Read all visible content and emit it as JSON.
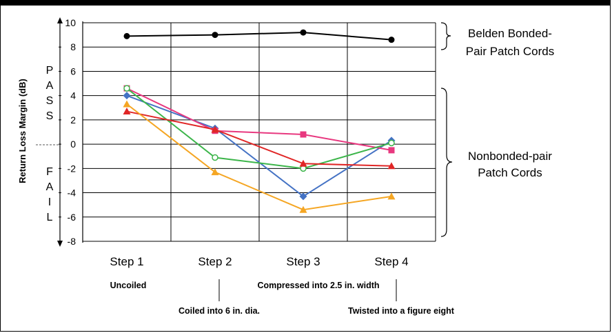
{
  "chart_data": {
    "type": "line",
    "categories": [
      "Step 1",
      "Step 2",
      "Step 3",
      "Step 4"
    ],
    "ylabel": "Return Loss Margin (dB)",
    "ylim": [
      -8,
      10
    ],
    "yticks": [
      10,
      8,
      6,
      4,
      2,
      0,
      -2,
      -4,
      -6,
      -8
    ],
    "grid": true,
    "pass_label": "PASS",
    "fail_label": "FAIL",
    "series": [
      {
        "color": "#000000",
        "marker": "circle",
        "values": [
          8.9,
          9.0,
          9.2,
          8.6
        ]
      },
      {
        "color": "#4472c4",
        "marker": "diamond",
        "values": [
          4.0,
          1.3,
          -4.3,
          0.3
        ]
      },
      {
        "color": "#e8387f",
        "marker": "square",
        "values": [
          4.6,
          1.1,
          0.8,
          -0.5
        ]
      },
      {
        "color": "#3cb54a",
        "marker": "open-circle",
        "values": [
          4.6,
          -1.1,
          -2.0,
          0.1
        ]
      },
      {
        "color": "#e02626",
        "marker": "triangle",
        "values": [
          2.7,
          1.2,
          -1.6,
          -1.8
        ]
      },
      {
        "color": "#f5a623",
        "marker": "triangle",
        "values": [
          3.3,
          -2.3,
          -5.4,
          -4.3
        ]
      }
    ],
    "annotations": {
      "bonded": [
        "Belden Bonded-",
        "Pair Patch Cords"
      ],
      "nonbonded": [
        "Nonbonded-pair",
        "Patch Cords"
      ]
    },
    "step_descriptions": {
      "step1": "Uncoiled",
      "step2": "Coiled into 6 in. dia.",
      "step3": "Compressed into 2.5 in. width",
      "step4": "Twisted into a figure eight"
    }
  }
}
